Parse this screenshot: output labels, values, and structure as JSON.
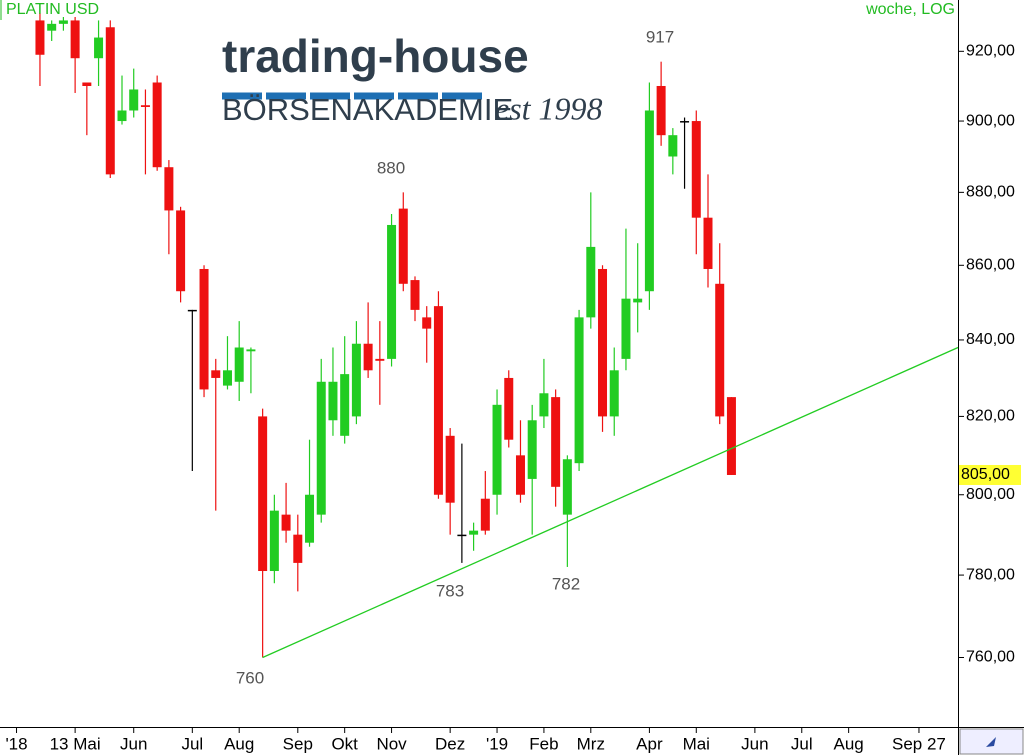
{
  "chart_data": {
    "type": "candlestick",
    "title": "PLATIN USD",
    "subtitle": "woche, LOG",
    "categories": [
      null,
      "'18",
      null,
      null,
      null,
      null,
      "13 Mai",
      null,
      null,
      null,
      null,
      "Jun",
      null,
      null,
      null,
      null,
      "Jul",
      null,
      null,
      null,
      "Aug",
      null,
      null,
      null,
      null,
      "Sep",
      null,
      null,
      null,
      "Okt",
      null,
      null,
      null,
      "Nov",
      null,
      null,
      null,
      null,
      "Dez",
      null,
      null,
      null,
      "'19",
      null,
      null,
      null,
      "Feb",
      null,
      null,
      null,
      "Mrz",
      null,
      null,
      null,
      null,
      "Apr",
      null,
      null,
      null,
      "Mai",
      null,
      null,
      null,
      null,
      "Jun",
      null,
      null,
      null,
      "Jul",
      null,
      null,
      null,
      "Aug",
      null,
      null,
      null,
      null,
      null,
      "Sep 27",
      null,
      null,
      null
    ],
    "open": [
      null,
      null,
      null,
      929,
      926,
      928,
      929,
      911,
      918,
      927,
      900,
      903,
      904.5,
      911,
      887,
      875,
      848,
      859,
      832,
      828,
      829,
      837,
      820,
      781,
      795,
      790,
      788,
      795,
      819,
      815,
      820,
      839,
      835,
      835,
      875.5,
      856,
      846,
      849,
      815,
      790,
      790,
      799,
      800,
      830,
      810,
      804,
      820,
      825,
      795,
      808,
      846,
      859,
      820,
      835,
      850,
      853,
      910,
      890,
      900,
      900,
      873,
      855,
      825,
      null,
      null,
      null,
      null,
      null,
      null,
      null,
      null,
      null,
      null,
      null,
      null,
      null,
      null,
      null,
      null,
      null,
      null,
      null
    ],
    "high": [
      null,
      null,
      null,
      931,
      929,
      930,
      930,
      911,
      929,
      929,
      913,
      915,
      909,
      913,
      889,
      876,
      848,
      860,
      835,
      841,
      845,
      838,
      822,
      800,
      803,
      795,
      814,
      835,
      838,
      841,
      845,
      850,
      845,
      874,
      880,
      857,
      849,
      853,
      817,
      813,
      793,
      806,
      827,
      832,
      819,
      823,
      835,
      827,
      810,
      848,
      880,
      860,
      838,
      870,
      866,
      911,
      917,
      898,
      901,
      903,
      885,
      866,
      825,
      null,
      null,
      null,
      null,
      null,
      null,
      null,
      null,
      null,
      null,
      null,
      null,
      null,
      null,
      null,
      null,
      null,
      null,
      null
    ],
    "low": [
      null,
      null,
      null,
      910,
      923,
      926,
      908,
      896,
      910,
      884,
      899,
      901,
      885,
      886,
      863,
      850,
      806,
      825,
      796,
      827,
      824,
      826,
      760,
      778,
      788,
      776,
      787,
      793,
      815,
      813,
      818,
      830,
      823,
      833,
      853,
      845,
      834,
      799,
      790,
      783,
      786,
      790,
      795,
      812,
      798,
      790,
      817,
      797,
      782,
      806,
      843,
      816,
      815,
      832,
      842,
      848,
      893,
      885,
      881,
      863,
      854,
      818,
      805,
      null,
      null,
      null,
      null,
      null,
      null,
      null,
      null,
      null,
      null,
      null,
      null,
      null,
      null,
      null,
      null,
      null,
      null,
      null
    ],
    "close": [
      null,
      null,
      null,
      919,
      928,
      929,
      918,
      910,
      924,
      885,
      903,
      909,
      904,
      887,
      875,
      853,
      848,
      827,
      830,
      832,
      838,
      837.5,
      781,
      796,
      791,
      783,
      800,
      829,
      829,
      831,
      839,
      832,
      834.5,
      871,
      855,
      848,
      843,
      800,
      798,
      790,
      791,
      791,
      823,
      814,
      800,
      819,
      826,
      802,
      809,
      846,
      865,
      820,
      832,
      851,
      851,
      903,
      896,
      896,
      900,
      873,
      859,
      820,
      805,
      null,
      null,
      null,
      null,
      null,
      null,
      null,
      null,
      null,
      null,
      null,
      null,
      null,
      null,
      null,
      null,
      null,
      null,
      null
    ],
    "up_color": "#22cc22",
    "down_color": "#ee1111",
    "flat_color": "#000000",
    "ylim": [
      744,
      935
    ],
    "log_y": true,
    "yticks": [
      {
        "value": 760,
        "label": "760,00"
      },
      {
        "value": 780,
        "label": "780,00"
      },
      {
        "value": 800,
        "label": "800,00"
      },
      {
        "value": 820,
        "label": "820,00"
      },
      {
        "value": 840,
        "label": "840,00"
      },
      {
        "value": 860,
        "label": "860,00"
      },
      {
        "value": 880,
        "label": "880,00"
      },
      {
        "value": 900,
        "label": "900,00"
      },
      {
        "value": 920,
        "label": "920,00"
      }
    ],
    "last_price": {
      "value": 805,
      "label": "805,00",
      "color": "#ffff33"
    },
    "trend_line": {
      "start": 760,
      "end": 838,
      "color": "#22cc22"
    },
    "annotations": [
      "917",
      "880",
      "760",
      "783",
      "782"
    ]
  },
  "logo": {
    "name": "trading-house",
    "subtitle": "BÖRSENAKADEMIE",
    "since": "est 1998"
  }
}
